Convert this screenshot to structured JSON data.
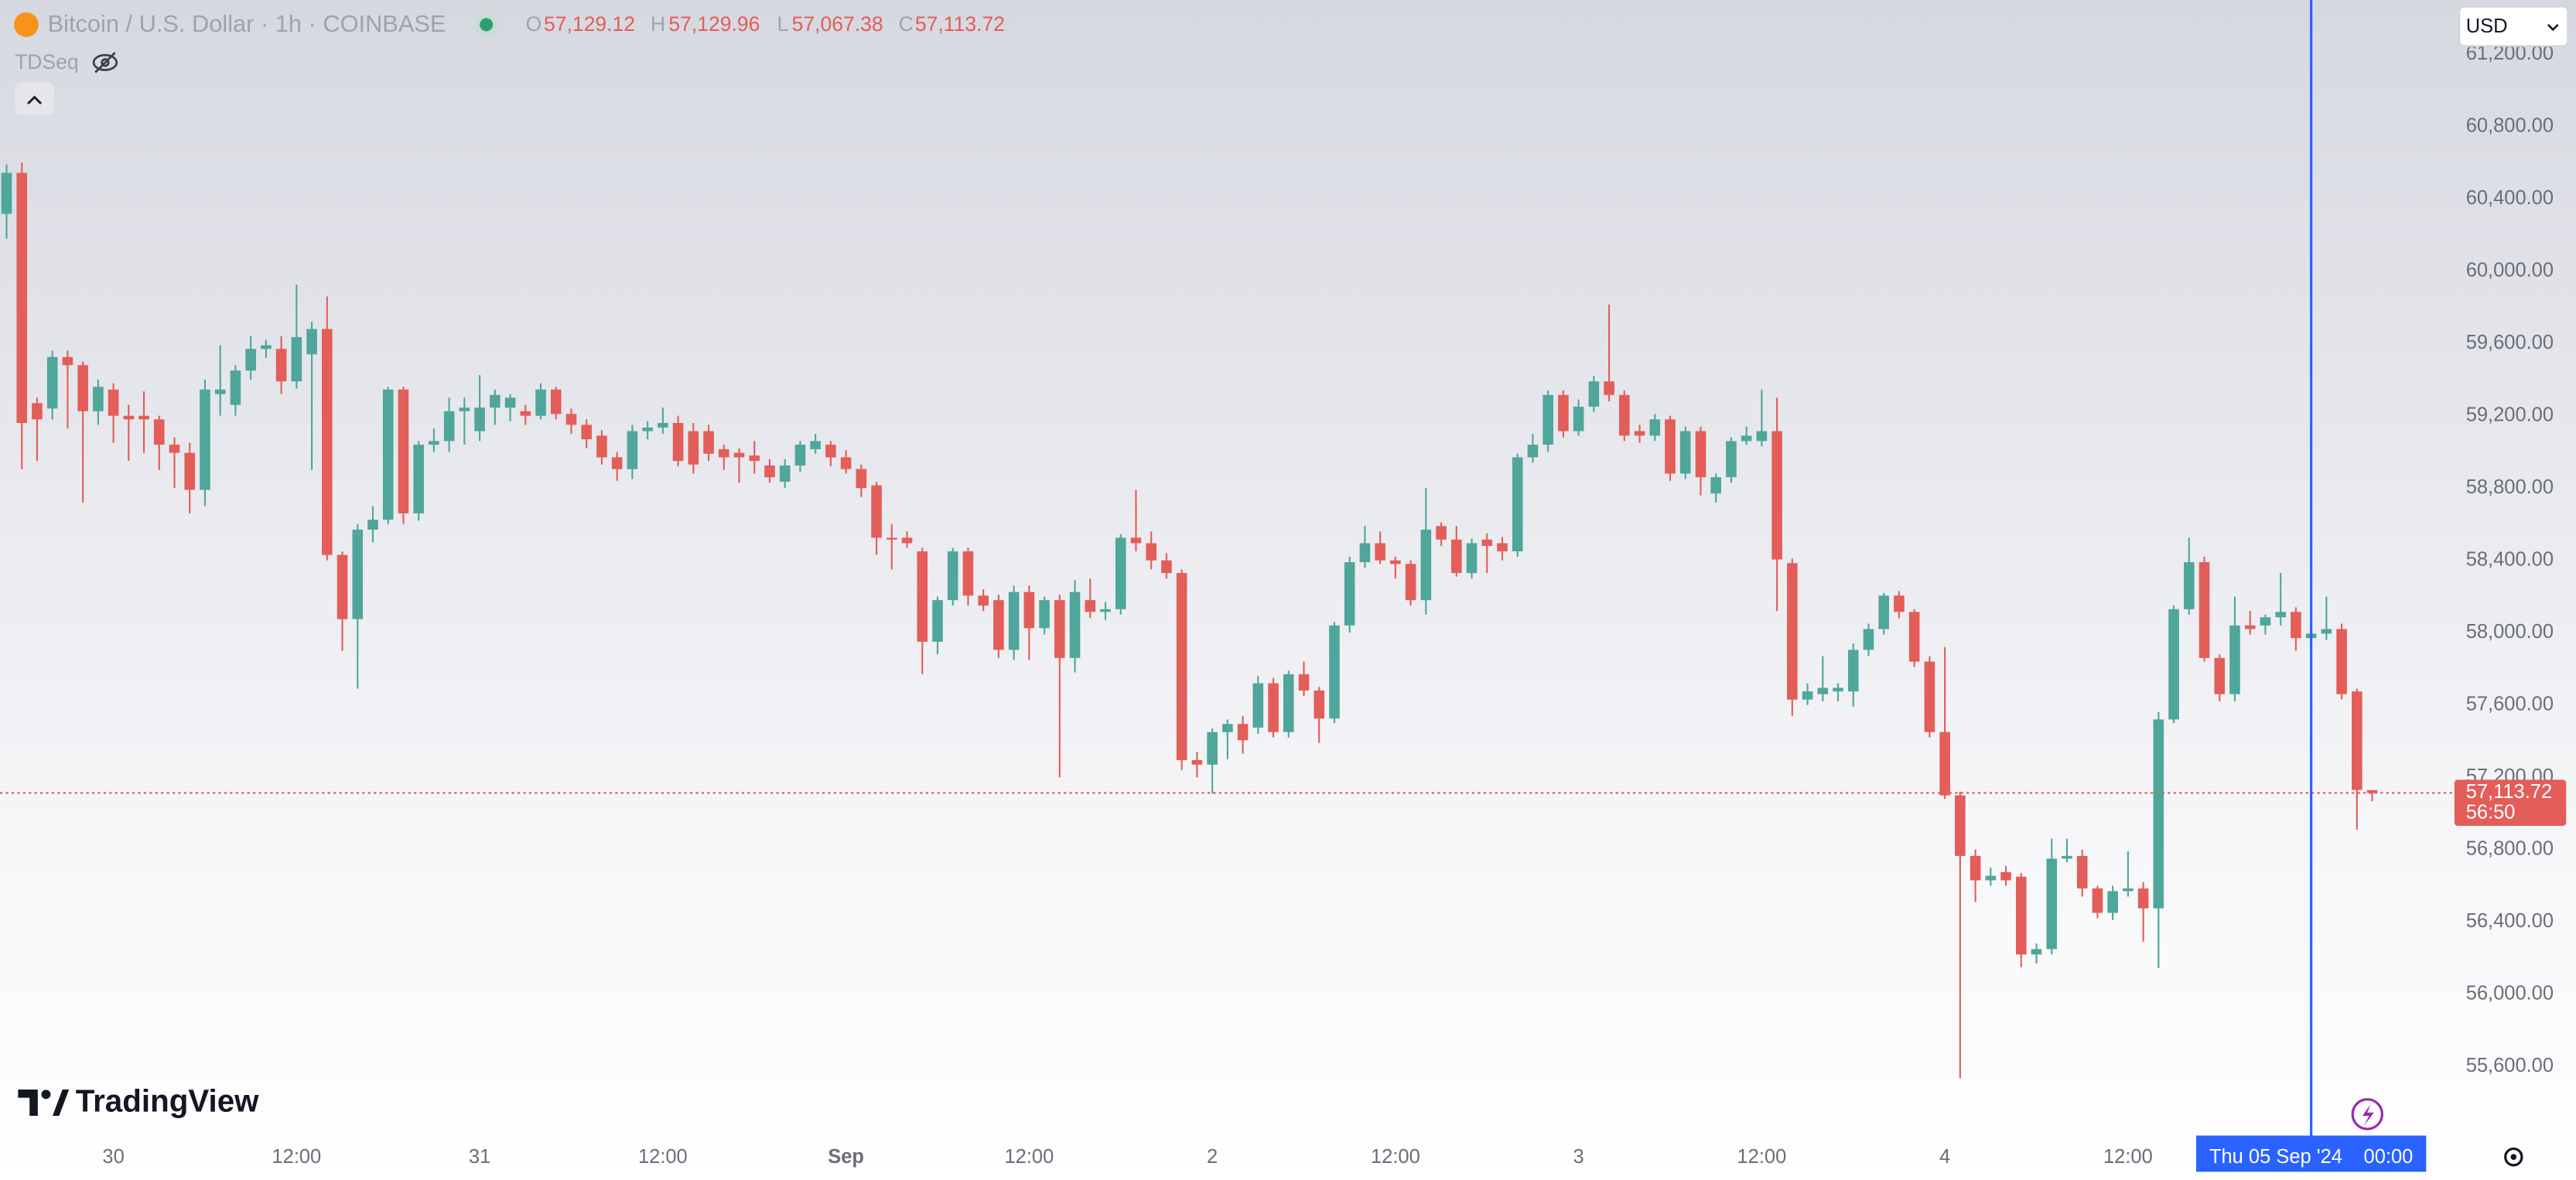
{
  "header": {
    "title": "Bitcoin / U.S. Dollar · 1h · COINBASE",
    "ohlc_keys": [
      "O",
      "H",
      "L",
      "C"
    ],
    "ohlc_values": [
      "57,129.12",
      "57,129.96",
      "57,067.38",
      "57,113.72"
    ],
    "indicator": "TDSeq",
    "currency": "USD",
    "brand": "TradingView"
  },
  "price_label": "57,113.72",
  "countdown": "56:50",
  "crosshair_date": "Thu 05 Sep '24",
  "crosshair_time": "00:00",
  "chart_data": {
    "type": "candlestick",
    "up_color": "#4fa69a",
    "down_color": "#e35d59",
    "grid": false,
    "categories": [
      null,
      null,
      null,
      null,
      null,
      null,
      null,
      "30",
      null,
      null,
      null,
      null,
      null,
      null,
      null,
      null,
      null,
      null,
      null,
      "12:00",
      null,
      null,
      null,
      null,
      null,
      null,
      null,
      null,
      null,
      null,
      null,
      "31",
      null,
      null,
      null,
      null,
      null,
      null,
      null,
      null,
      null,
      null,
      null,
      "12:00",
      null,
      null,
      null,
      null,
      null,
      null,
      null,
      null,
      null,
      null,
      null,
      "Sep",
      null,
      null,
      null,
      null,
      null,
      null,
      null,
      null,
      null,
      null,
      null,
      "12:00",
      null,
      null,
      null,
      null,
      null,
      null,
      null,
      null,
      null,
      null,
      null,
      "2",
      null,
      null,
      null,
      null,
      null,
      null,
      null,
      null,
      null,
      null,
      null,
      "12:00",
      null,
      null,
      null,
      null,
      null,
      null,
      null,
      null,
      null,
      null,
      null,
      "3",
      null,
      null,
      null,
      null,
      null,
      null,
      null,
      null,
      null,
      null,
      null,
      "12:00",
      null,
      null,
      null,
      null,
      null,
      null,
      null,
      null,
      null,
      null,
      null,
      "4",
      null,
      null,
      null,
      null,
      null,
      null,
      null,
      null,
      null,
      null,
      null,
      "12:00",
      null,
      null,
      null,
      null,
      null,
      null,
      null,
      null,
      null,
      null,
      null,
      null,
      null,
      null,
      null,
      null
    ],
    "open": [
      60317,
      60544,
      59270,
      59240,
      59525,
      59480,
      59225,
      59345,
      59200,
      59200,
      59180,
      59040,
      58995,
      58790,
      59320,
      59260,
      59450,
      59570,
      59570,
      59390,
      59540,
      59680,
      58430,
      58075,
      58570,
      58625,
      59345,
      58660,
      59040,
      59060,
      59225,
      59115,
      59245,
      59245,
      59225,
      59200,
      59345,
      59210,
      59150,
      59090,
      58970,
      58905,
      59115,
      59135,
      59160,
      59115,
      59115,
      59015,
      58995,
      58980,
      58925,
      58835,
      58925,
      59015,
      59040,
      58970,
      58905,
      58815,
      58525,
      58525,
      58450,
      57950,
      58180,
      58450,
      58205,
      58180,
      57905,
      58225,
      58025,
      58180,
      57860,
      58180,
      58115,
      58130,
      58525,
      58495,
      58400,
      58330,
      57295,
      57270,
      57450,
      57495,
      57475,
      57720,
      57450,
      57770,
      57680,
      57525,
      58040,
      58390,
      58495,
      58400,
      58380,
      58180,
      58590,
      58515,
      58330,
      58515,
      58495,
      58450,
      58970,
      59040,
      59315,
      59115,
      59250,
      59390,
      59315,
      59115,
      59090,
      59180,
      58880,
      59115,
      58770,
      58860,
      59060,
      59060,
      59115,
      58385,
      57630,
      57660,
      57675,
      57675,
      57905,
      58020,
      58205,
      58115,
      57840,
      57450,
      57100,
      56765,
      56630,
      56675,
      56650,
      56220,
      56250,
      56750,
      56765,
      56585,
      56450,
      56570,
      56585,
      56475,
      57520,
      58130,
      58390,
      57860,
      57660,
      58040,
      58040,
      58085,
      58115,
      57970,
      57995,
      58020,
      57675,
      57129.12
    ],
    "high": [
      60590,
      60600,
      59300,
      59560,
      59560,
      59500,
      59400,
      59380,
      59260,
      59335,
      59200,
      59080,
      59050,
      59400,
      59590,
      59480,
      59640,
      59620,
      59640,
      59925,
      59720,
      59860,
      58450,
      58600,
      58700,
      59360,
      59360,
      59060,
      59130,
      59300,
      59300,
      59425,
      59345,
      59320,
      59260,
      59380,
      59360,
      59240,
      59180,
      59120,
      59000,
      59150,
      59170,
      59245,
      59200,
      59160,
      59150,
      59040,
      59020,
      59060,
      58960,
      58960,
      59060,
      59100,
      59060,
      59010,
      58930,
      58835,
      58600,
      58560,
      58470,
      58200,
      58470,
      58470,
      58240,
      58210,
      58260,
      58260,
      58200,
      58210,
      58290,
      58300,
      58170,
      58545,
      58790,
      58560,
      58440,
      58350,
      57340,
      57470,
      57520,
      57540,
      57760,
      57750,
      57790,
      57840,
      57700,
      58060,
      58420,
      58590,
      58560,
      58420,
      58400,
      58800,
      58610,
      58590,
      58520,
      58550,
      58530,
      58990,
      59100,
      59340,
      59340,
      59290,
      59420,
      59815,
      59340,
      59150,
      59210,
      59200,
      59140,
      59140,
      58880,
      59080,
      59140,
      59345,
      59300,
      58410,
      57720,
      57870,
      57720,
      57940,
      58050,
      58220,
      58230,
      58130,
      57870,
      57920,
      57120,
      56800,
      56700,
      56710,
      56670,
      56280,
      56860,
      56860,
      56800,
      56600,
      56600,
      56790,
      56620,
      57560,
      58150,
      58525,
      58420,
      57880,
      58200,
      58120,
      58100,
      58330,
      58140,
      58030,
      58200,
      58050,
      57690,
      57129.96
    ],
    "low": [
      60180,
      58905,
      58950,
      59180,
      59130,
      58720,
      59150,
      59050,
      58950,
      58995,
      58900,
      58800,
      58660,
      58700,
      59200,
      59200,
      59400,
      59520,
      59320,
      59350,
      58900,
      58400,
      57900,
      57690,
      58500,
      58600,
      58600,
      58620,
      59000,
      59000,
      59040,
      59060,
      59150,
      59170,
      59150,
      59180,
      59180,
      59100,
      59020,
      58930,
      58840,
      58850,
      59070,
      59100,
      58920,
      58880,
      58950,
      58900,
      58830,
      58880,
      58830,
      58800,
      58890,
      58990,
      58920,
      58880,
      58750,
      58430,
      58350,
      58470,
      57770,
      57880,
      58150,
      58150,
      58120,
      57860,
      57850,
      57850,
      57990,
      57200,
      57780,
      58080,
      58070,
      58100,
      58450,
      58350,
      58300,
      57240,
      57200,
      57110,
      57300,
      57330,
      57440,
      57420,
      57420,
      57650,
      57390,
      57500,
      58000,
      58360,
      58380,
      58300,
      58150,
      58100,
      58480,
      58310,
      58300,
      58330,
      58400,
      58420,
      58940,
      59000,
      59080,
      59090,
      59220,
      59280,
      59060,
      59050,
      59060,
      58840,
      58850,
      58760,
      58720,
      58830,
      59040,
      59030,
      58120,
      57540,
      57600,
      57620,
      57620,
      57590,
      57870,
      57990,
      58080,
      57810,
      57420,
      57080,
      55535,
      56510,
      56600,
      56600,
      56150,
      56170,
      56220,
      56730,
      56540,
      56420,
      56410,
      56540,
      56290,
      56145,
      57500,
      58100,
      57840,
      57620,
      57620,
      57990,
      57990,
      58040,
      57900,
      57950,
      57960,
      57630,
      56910,
      57067.38
    ],
    "close": [
      60544,
      59160,
      59180,
      59525,
      59480,
      59225,
      59360,
      59200,
      59180,
      59180,
      59040,
      58995,
      58790,
      59345,
      59345,
      59450,
      59570,
      59590,
      59390,
      59635,
      59680,
      58430,
      58075,
      58570,
      58625,
      59345,
      58660,
      59040,
      59060,
      59225,
      59245,
      59245,
      59315,
      59300,
      59200,
      59345,
      59210,
      59150,
      59070,
      58970,
      58905,
      59115,
      59135,
      59160,
      58950,
      58930,
      58990,
      58970,
      58970,
      58950,
      58860,
      58925,
      59040,
      59060,
      58970,
      58905,
      58800,
      58525,
      58515,
      58495,
      57950,
      58180,
      58450,
      58205,
      58150,
      57905,
      58225,
      58025,
      58180,
      57860,
      58225,
      58115,
      58130,
      58525,
      58495,
      58400,
      58330,
      57295,
      57270,
      57450,
      57495,
      57405,
      57720,
      57450,
      57770,
      57680,
      57525,
      58040,
      58390,
      58495,
      58400,
      58380,
      58180,
      58570,
      58515,
      58330,
      58495,
      58480,
      58450,
      58970,
      59040,
      59315,
      59115,
      59250,
      59390,
      59315,
      59090,
      59090,
      59180,
      58880,
      59115,
      58860,
      58860,
      59060,
      59090,
      59115,
      58405,
      57630,
      57675,
      57695,
      57695,
      57905,
      58020,
      58205,
      58115,
      57840,
      57450,
      57100,
      56765,
      56630,
      56655,
      56630,
      56220,
      56250,
      56750,
      56765,
      56585,
      56450,
      56570,
      56585,
      56475,
      57520,
      58130,
      58390,
      57860,
      57660,
      58040,
      58020,
      58085,
      58115,
      57970,
      57995,
      58020,
      57660,
      57130,
      57113.72
    ],
    "ylim": [
      55218,
      61500
    ],
    "yticks": [
      {
        "value": 55600,
        "label": "55,600.00"
      },
      {
        "value": 56000,
        "label": "56,000.00"
      },
      {
        "value": 56400,
        "label": "56,400.00"
      },
      {
        "value": 56800,
        "label": "56,800.00"
      },
      {
        "value": 57200,
        "label": "57,200.00"
      },
      {
        "value": 57600,
        "label": "57,600.00"
      },
      {
        "value": 58000,
        "label": "58,000.00"
      },
      {
        "value": 58400,
        "label": "58,400.00"
      },
      {
        "value": 58800,
        "label": "58,800.00"
      },
      {
        "value": 59200,
        "label": "59,200.00"
      },
      {
        "value": 59600,
        "label": "59,600.00"
      },
      {
        "value": 60000,
        "label": "60,000.00"
      },
      {
        "value": 60400,
        "label": "60,400.00"
      },
      {
        "value": 60800,
        "label": "60,800.00"
      },
      {
        "value": 61200,
        "label": "61,200.00"
      }
    ]
  }
}
